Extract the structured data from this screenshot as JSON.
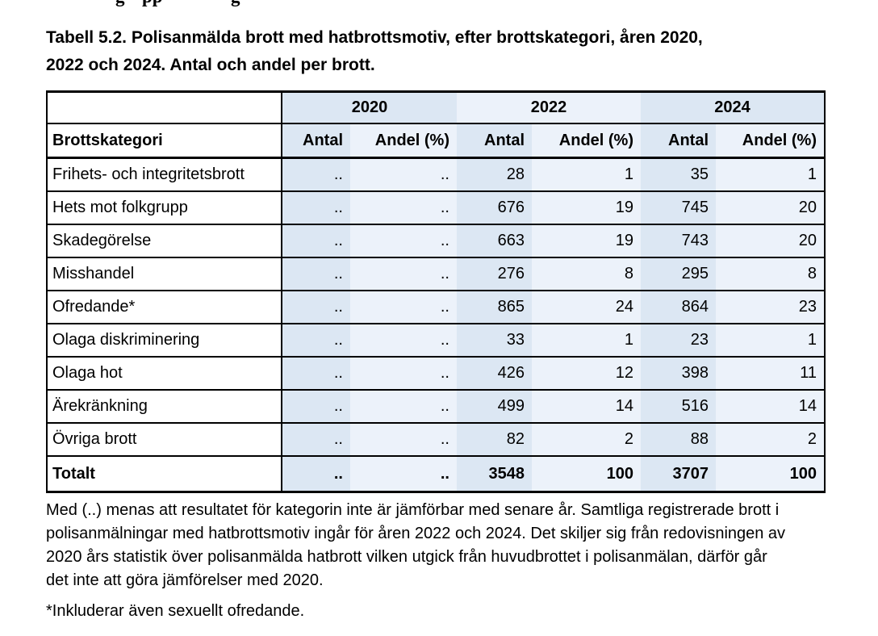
{
  "page": {
    "top_clipped_fragments": [
      "g",
      "pp",
      "g"
    ]
  },
  "title": {
    "line1": "Tabell 5.2. Polisanmälda brott med hatbrottsmotiv, efter brottskategori, åren 2020,",
    "line2": "2022 och 2024. Antal och andel per brott."
  },
  "table": {
    "category_header": "Brottskategori",
    "year_headers": [
      "2020",
      "2022",
      "2024"
    ],
    "col_headers": [
      "Antal",
      "Andel (%)"
    ],
    "missing_marker": "..",
    "rows": [
      {
        "label": "Frihets- och integritetsbrott",
        "values": [
          "..",
          "..",
          "28",
          "1",
          "35",
          "1"
        ],
        "bold": false
      },
      {
        "label": "Hets mot folkgrupp",
        "values": [
          "..",
          "..",
          "676",
          "19",
          "745",
          "20"
        ],
        "bold": false
      },
      {
        "label": "Skadegörelse",
        "values": [
          "..",
          "..",
          "663",
          "19",
          "743",
          "20"
        ],
        "bold": false
      },
      {
        "label": "Misshandel",
        "values": [
          "..",
          "..",
          "276",
          "8",
          "295",
          "8"
        ],
        "bold": false
      },
      {
        "label": "Ofredande*",
        "values": [
          "..",
          "..",
          "865",
          "24",
          "864",
          "23"
        ],
        "bold": false
      },
      {
        "label": "Olaga diskriminering",
        "values": [
          "..",
          "..",
          "33",
          "1",
          "23",
          "1"
        ],
        "bold": false
      },
      {
        "label": "Olaga hot",
        "values": [
          "..",
          "..",
          "426",
          "12",
          "398",
          "11"
        ],
        "bold": false
      },
      {
        "label": "Ärekränkning",
        "values": [
          "..",
          "..",
          "499",
          "14",
          "516",
          "14"
        ],
        "bold": false
      },
      {
        "label": "Övriga brott",
        "values": [
          "..",
          "..",
          "82",
          "2",
          "88",
          "2"
        ],
        "bold": false
      },
      {
        "label": "Totalt",
        "values": [
          "..",
          "..",
          "3548",
          "100",
          "3707",
          "100"
        ],
        "bold": true
      }
    ]
  },
  "notes": {
    "paragraph_lines": [
      "Med (..) menas att resultatet för kategorin inte är jämförbar med senare år. Samtliga registrerade brott i",
      "polisanmälningar med hatbrottsmotiv ingår för åren 2022 och 2024. Det skiljer sig från redovisningen av",
      "2020 års statistik över polisanmälda hatbrott vilken utgick från huvudbrottet i polisanmälan, därför går",
      "det inte att göra jämförelser med 2020."
    ],
    "footnote": "*Inkluderar även sexuellt ofredande."
  },
  "colors": {
    "band_dark": "#dce7f3",
    "band_light": "#ecf2fa",
    "border": "#000000"
  }
}
